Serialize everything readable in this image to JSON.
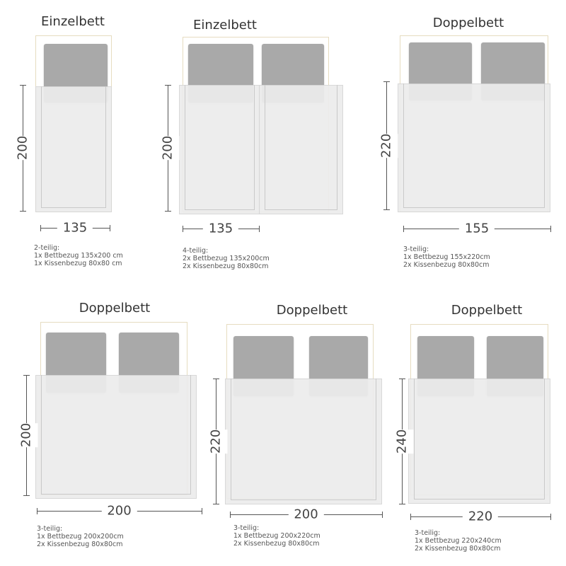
{
  "panels": [
    {
      "title": "Einzelbett",
      "height_label": "200",
      "width_label": "135",
      "desc": [
        "2-teilig:",
        "1x Bettbezug 135x200 cm",
        "1x Kissenbezug 80x80 cm"
      ]
    },
    {
      "title": "Einzelbett",
      "height_label": "200",
      "width_label": "135",
      "desc": [
        "4-teilig:",
        "2x Bettbezug 135x200cm",
        "2x Kissenbezug 80x80cm"
      ]
    },
    {
      "title": "Doppelbett",
      "height_label": "220",
      "width_label": "155",
      "desc": [
        "3-teilig:",
        "1x Bettbezug 155x220cm",
        "2x Kissenbezug 80x80cm"
      ]
    },
    {
      "title": "Doppelbett",
      "height_label": "200",
      "width_label": "200",
      "desc": [
        "3-teilig:",
        "1x Bettbezug 200x200cm",
        "2x Kissenbezug 80x80cm"
      ]
    },
    {
      "title": "Doppelbett",
      "height_label": "220",
      "width_label": "200",
      "desc": [
        "3-teilig:",
        "1x Bettbezug 200x220cm",
        "2x Kissenbezug 80x80cm"
      ]
    },
    {
      "title": "Doppelbett",
      "height_label": "240",
      "width_label": "220",
      "desc": [
        "3-teilig:",
        "1x Bettbezug 220x240cm",
        "2x Kissenbezug 80x80cm"
      ]
    }
  ],
  "colors": {
    "pillow": "#a9a9a9",
    "duvet": "#ececec",
    "frame": "#e6dcc0",
    "text": "#333333"
  }
}
